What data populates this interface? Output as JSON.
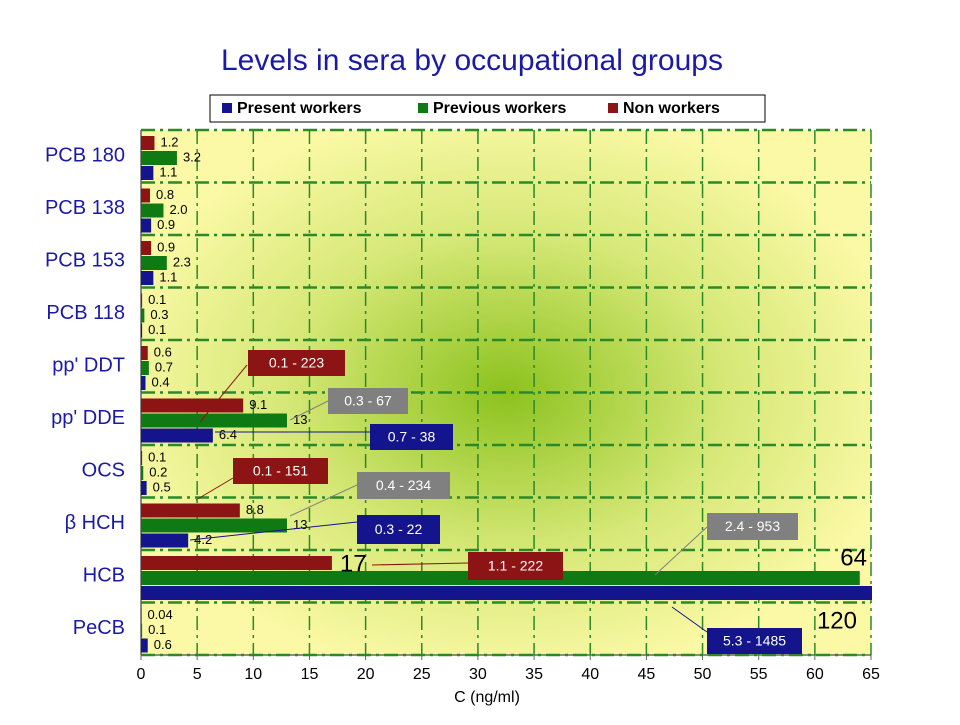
{
  "chart_data": {
    "type": "bar",
    "orientation": "horizontal",
    "title": "Levels in sera by occupational groups",
    "xlabel": "C (ng/ml)",
    "categories": [
      "PCB 180",
      "PCB 138",
      "PCB 153",
      "PCB 118",
      "pp' DDT",
      "pp' DDE",
      "OCS",
      "β HCH",
      "HCB",
      "PeCB"
    ],
    "series": [
      {
        "name": "Present workers",
        "color": "#14148c",
        "values": [
          1.1,
          0.9,
          1.1,
          0.1,
          0.4,
          6.4,
          0.5,
          4.2,
          120,
          0.6
        ],
        "value_labels": [
          "1.1",
          "0.9",
          "1.1",
          "0.1",
          "0.4",
          "6.4",
          "0.5",
          "4.2",
          "120",
          "0.6"
        ]
      },
      {
        "name": "Previous workers",
        "color": "#0f7a14",
        "values": [
          3.2,
          2.0,
          2.3,
          0.3,
          0.7,
          13,
          0.2,
          13,
          64,
          0.1
        ],
        "value_labels": [
          "3.2",
          "2.0",
          "2.3",
          "0.3",
          "0.7",
          "13",
          "0.2",
          "13",
          "64",
          "0.1"
        ]
      },
      {
        "name": "Non workers",
        "color": "#8c1414",
        "values": [
          1.2,
          0.8,
          0.9,
          0.1,
          0.6,
          9.1,
          0.1,
          8.8,
          17,
          0.04
        ],
        "value_labels": [
          "1.2",
          "0.8",
          "0.9",
          "0.1",
          "0.6",
          "9.1",
          "0.1",
          "8.8",
          "17",
          "0.04"
        ]
      }
    ],
    "xlim": [
      0,
      65
    ],
    "xticks": [
      0,
      5,
      10,
      15,
      20,
      25,
      30,
      35,
      40,
      45,
      50,
      55,
      60,
      65
    ],
    "grid": true,
    "annotations": [
      {
        "text": "0.1 - 223",
        "color": "#8c1414"
      },
      {
        "text": "0.3 - 67",
        "color": "#808080"
      },
      {
        "text": "0.7 - 38",
        "color": "#14148c"
      },
      {
        "text": "0.1 - 151",
        "color": "#8c1414"
      },
      {
        "text": "0.4 - 234",
        "color": "#808080"
      },
      {
        "text": "0.3 - 22",
        "color": "#14148c"
      },
      {
        "text": "2.4 - 953",
        "color": "#808080"
      },
      {
        "text": "1.1 - 222",
        "color": "#8c1414"
      },
      {
        "text": "5.3 - 1485",
        "color": "#14148c"
      }
    ]
  }
}
